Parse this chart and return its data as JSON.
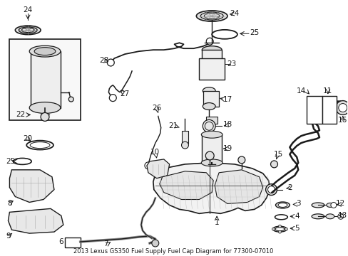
{
  "title": "2013 Lexus GS350 Fuel Supply Fuel Cap Diagram for 77300-07010",
  "bg": "#ffffff",
  "figsize": [
    4.89,
    3.6
  ],
  "dpi": 100,
  "label_fs": 7.5
}
